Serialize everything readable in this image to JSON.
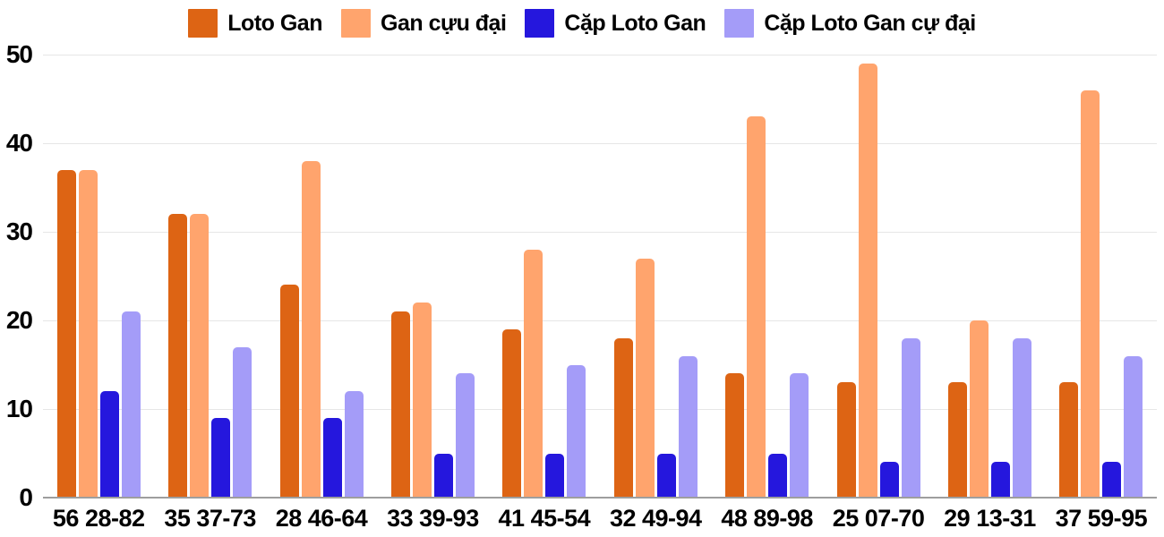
{
  "chart_data": {
    "type": "bar",
    "title": "",
    "xlabel": "",
    "ylabel": "",
    "categories": [
      "56 28-82",
      "35 37-73",
      "28 46-64",
      "33 39-93",
      "41 45-54",
      "32 49-94",
      "48 89-98",
      "25 07-70",
      "29 13-31",
      "37 59-95"
    ],
    "series": [
      {
        "name": "Loto Gan",
        "color": "#dd6414",
        "values": [
          37,
          32,
          24,
          21,
          19,
          18,
          14,
          13,
          13,
          13
        ]
      },
      {
        "name": "Gan cựu đại",
        "color": "#ffa46d",
        "values": [
          37,
          32,
          38,
          22,
          28,
          27,
          43,
          49,
          20,
          46
        ]
      },
      {
        "name": "Cặp Loto Gan",
        "color": "#2517dd",
        "values": [
          12,
          9,
          9,
          5,
          5,
          5,
          5,
          4,
          4,
          4
        ]
      },
      {
        "name": "Cặp Loto Gan cự đại",
        "color": "#a49cf8",
        "values": [
          21,
          17,
          12,
          14,
          15,
          16,
          14,
          18,
          18,
          16
        ]
      }
    ],
    "ylim": [
      0,
      50
    ],
    "yticks": [
      0,
      10,
      20,
      30,
      40,
      50
    ],
    "grid": true,
    "legend_position": "top"
  },
  "colors": {
    "background": "#ffffff",
    "grid_line": "#e6e6e6",
    "axis_line": "#9e9e9e",
    "text": "#000000"
  }
}
